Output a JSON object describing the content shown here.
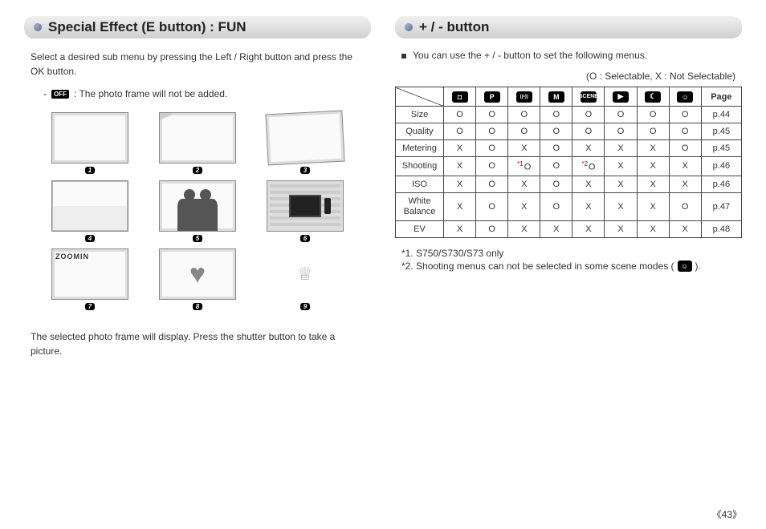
{
  "left": {
    "title": "Special Effect (E button) : FUN",
    "intro": "Select a desired sub menu by pressing the Left / Right button and press the OK button.",
    "off_label": "OFF",
    "off_text": ": The photo frame will not be added.",
    "frames": [
      {
        "label": "1",
        "style": "plain"
      },
      {
        "label": "2",
        "style": "tape"
      },
      {
        "label": "3",
        "style": "rot"
      },
      {
        "label": "4",
        "style": "split"
      },
      {
        "label": "5",
        "style": "couple"
      },
      {
        "label": "6",
        "style": "tv"
      },
      {
        "label": "7",
        "style": "zoomin"
      },
      {
        "label": "8",
        "style": "heart"
      },
      {
        "label": "9",
        "style": "crown"
      }
    ],
    "outro": "The selected photo frame will display. Press the shutter button to take a picture."
  },
  "right": {
    "title": "+ / - button",
    "intro": "You can use the + / - button to set the following menus.",
    "legend": "(O : Selectable, X : Not Selectable)",
    "modes": [
      {
        "name": "auto-icon",
        "glyph": "◘"
      },
      {
        "name": "program-icon",
        "glyph": "P"
      },
      {
        "name": "asr-icon",
        "glyph": "((•))"
      },
      {
        "name": "manual-icon",
        "glyph": "M"
      },
      {
        "name": "scene-icon",
        "glyph": "SCENE"
      },
      {
        "name": "movie-icon",
        "glyph": "▶"
      },
      {
        "name": "night-icon",
        "glyph": "☾"
      },
      {
        "name": "portrait-icon",
        "glyph": "☺"
      }
    ],
    "page_header": "Page",
    "rows": [
      {
        "name": "Size",
        "cells": [
          "O",
          "O",
          "O",
          "O",
          "O",
          "O",
          "O",
          "O"
        ],
        "page": "p.44"
      },
      {
        "name": "Quality",
        "cells": [
          "O",
          "O",
          "O",
          "O",
          "O",
          "O",
          "O",
          "O"
        ],
        "page": "p.45"
      },
      {
        "name": "Metering",
        "cells": [
          "X",
          "O",
          "X",
          "O",
          "X",
          "X",
          "X",
          "O"
        ],
        "page": "p.45"
      },
      {
        "name": "Shooting",
        "cells": [
          "X",
          "O",
          "O",
          "O",
          "O",
          "X",
          "X",
          "X"
        ],
        "page": "p.46",
        "sup": {
          "2": "*1",
          "4": "*2"
        }
      },
      {
        "name": "ISO",
        "cells": [
          "X",
          "O",
          "X",
          "O",
          "X",
          "X",
          "X",
          "X"
        ],
        "page": "p.46"
      },
      {
        "name": "White Balance",
        "cells": [
          "X",
          "O",
          "X",
          "O",
          "X",
          "X",
          "X",
          "O"
        ],
        "page": "p.47",
        "wrap": true
      },
      {
        "name": "EV",
        "cells": [
          "X",
          "O",
          "X",
          "X",
          "X",
          "X",
          "X",
          "X"
        ],
        "page": "p.48"
      }
    ],
    "footnote1": "*1. S750/S730/S73 only",
    "footnote2_pre": "*2. Shooting menus can not be selected in some scene modes (",
    "footnote2_post": ")."
  },
  "page_number": "《43》"
}
